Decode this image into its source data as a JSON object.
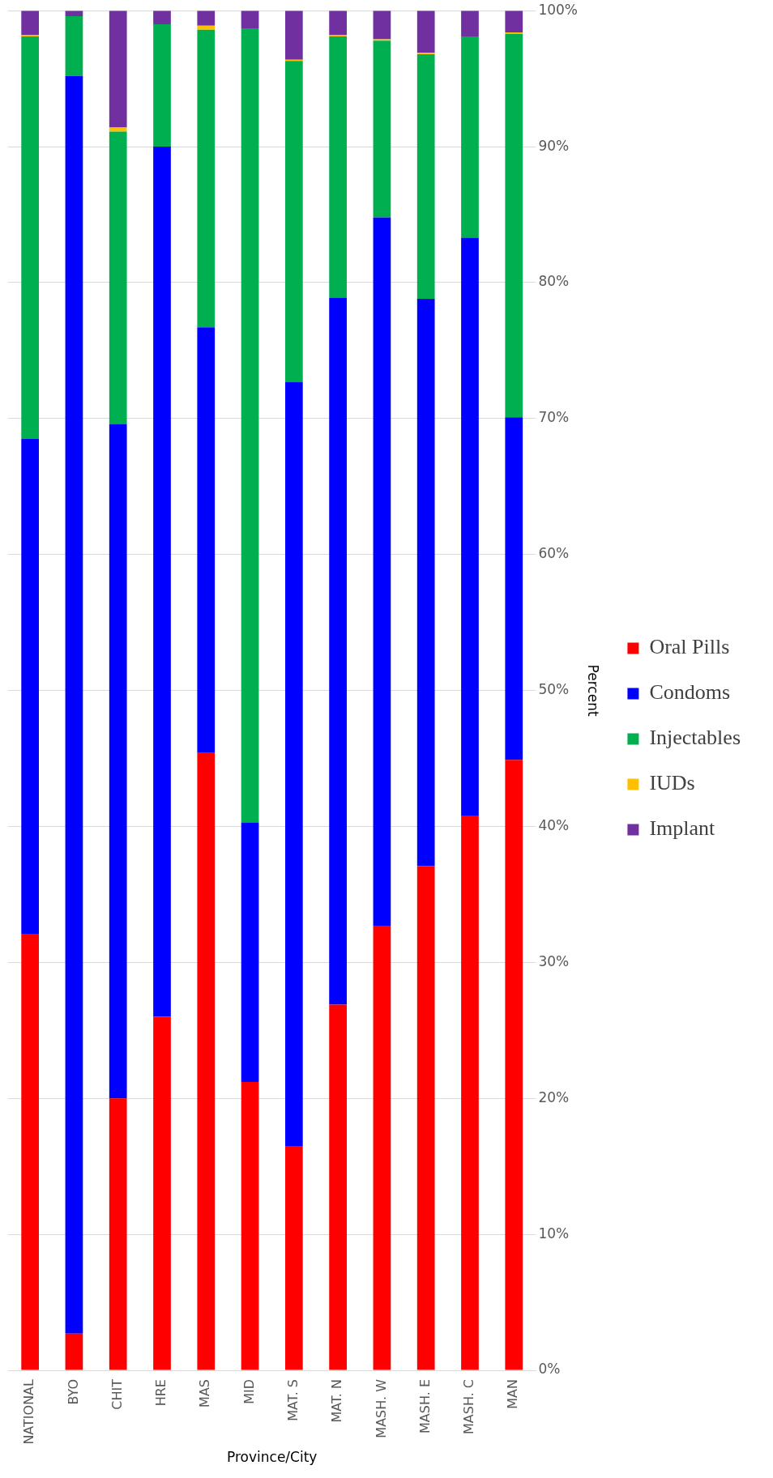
{
  "chart_data": {
    "type": "bar",
    "stacked": true,
    "ylabel": "Percent",
    "xlabel": "Province/City",
    "categories": [
      "NATIONAL",
      "BYO",
      "CHIT",
      "HRE",
      "MAS",
      "MID",
      "MAT. S",
      "MAT. N",
      "MASH. W",
      "MASH. E",
      "MASH. C",
      "MAN"
    ],
    "series": [
      {
        "name": "Oral Pills",
        "color": "#ff0000",
        "values": [
          32.1,
          2.7,
          20.0,
          26.0,
          45.4,
          21.2,
          16.5,
          26.9,
          32.7,
          37.1,
          40.8,
          44.9
        ]
      },
      {
        "name": "Condoms",
        "color": "#0000ff",
        "values": [
          36.4,
          92.5,
          49.6,
          64.0,
          31.3,
          19.1,
          56.2,
          52.0,
          52.1,
          41.7,
          42.5,
          25.2
        ]
      },
      {
        "name": "Injectables",
        "color": "#00b050",
        "values": [
          29.6,
          4.4,
          21.5,
          9.0,
          21.9,
          58.4,
          23.6,
          19.2,
          13.0,
          18.0,
          14.8,
          28.2
        ]
      },
      {
        "name": "IUDs",
        "color": "#ffc000",
        "values": [
          0.1,
          0,
          0.3,
          0,
          0.3,
          0,
          0.1,
          0.1,
          0.1,
          0.1,
          0,
          0.1
        ]
      },
      {
        "name": "Implant",
        "color": "#7030a0",
        "values": [
          1.8,
          0.4,
          8.6,
          1.0,
          1.1,
          1.3,
          3.6,
          1.8,
          2.1,
          3.1,
          1.9,
          1.6
        ]
      }
    ],
    "ylim": [
      0,
      100
    ],
    "yticks": [
      {
        "value": 0,
        "label": "0%"
      },
      {
        "value": 10,
        "label": "10%"
      },
      {
        "value": 20,
        "label": "20%"
      },
      {
        "value": 30,
        "label": "30%"
      },
      {
        "value": 40,
        "label": "40%"
      },
      {
        "value": 50,
        "label": "50%"
      },
      {
        "value": 60,
        "label": "60%"
      },
      {
        "value": 70,
        "label": "70%"
      },
      {
        "value": 80,
        "label": "80%"
      },
      {
        "value": 90,
        "label": "90%"
      },
      {
        "value": 100,
        "label": "100%"
      }
    ],
    "grid": "y",
    "legend": "right"
  }
}
